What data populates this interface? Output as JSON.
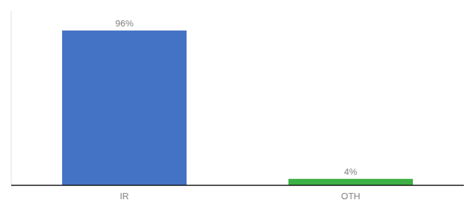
{
  "chart_data": {
    "type": "bar",
    "categories": [
      "IR",
      "OTH"
    ],
    "values": [
      96,
      4
    ],
    "value_labels": [
      "96%",
      "4%"
    ],
    "colors": [
      "#4472c4",
      "#3cb043"
    ],
    "ylim": [
      0,
      108
    ],
    "data_labels": true,
    "tick_labels": "x",
    "grid": false
  }
}
